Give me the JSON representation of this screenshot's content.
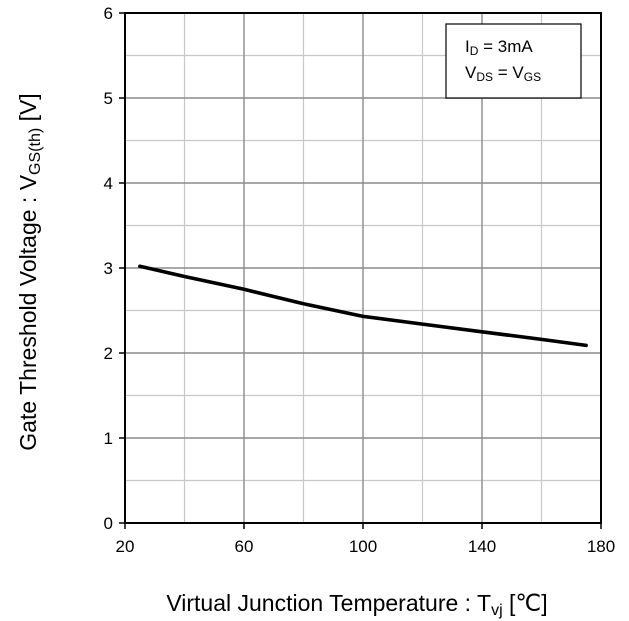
{
  "chart_data": {
    "type": "line",
    "xlabel": {
      "main": "Virtual Junction Temperature : T",
      "sub": "vj",
      "unit": " [℃]"
    },
    "ylabel": {
      "main": "Gate Threshold Voltage : V",
      "sub": "GS(th)",
      "unit": " [V]"
    },
    "xlim": [
      20,
      180
    ],
    "ylim": [
      0,
      6
    ],
    "x_ticks": [
      20,
      60,
      100,
      140,
      180
    ],
    "y_ticks": [
      0,
      1,
      2,
      3,
      4,
      5,
      6
    ],
    "x_minor_step": 20,
    "y_minor_step": 0.5,
    "grid": true,
    "legend": {
      "position": "top-right",
      "lines": [
        {
          "main": "I",
          "sub": "D",
          "rest": " = 3mA"
        },
        {
          "main": "V",
          "sub": "DS",
          "rest": " = V",
          "sub2": "GS"
        }
      ]
    },
    "series": [
      {
        "color": "#000000",
        "x": [
          25,
          40,
          60,
          80,
          100,
          120,
          140,
          160,
          175
        ],
        "y": [
          3.02,
          2.9,
          2.75,
          2.58,
          2.43,
          2.34,
          2.25,
          2.16,
          2.09
        ]
      }
    ]
  }
}
